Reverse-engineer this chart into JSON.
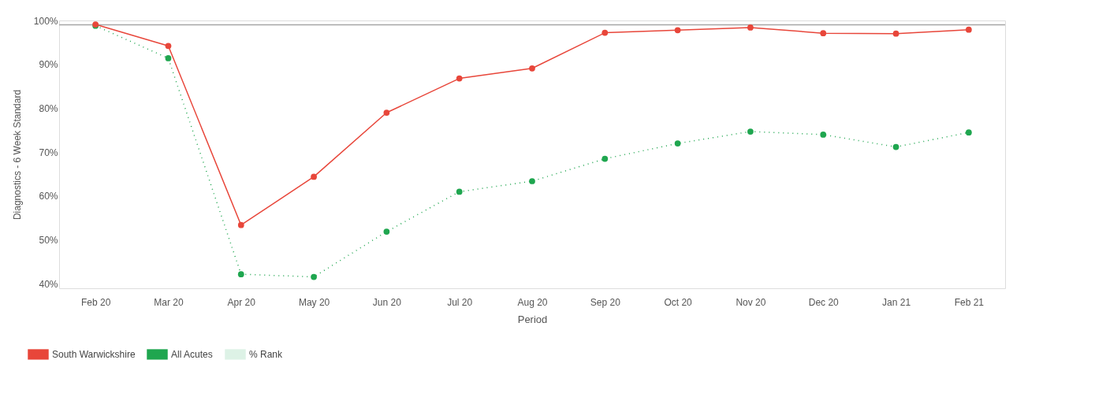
{
  "chart_data": {
    "type": "line",
    "xlabel": "Period",
    "ylabel": "Diagnostics - 6 Week Standard",
    "categories": [
      "Feb 20",
      "Mar 20",
      "Apr 20",
      "May 20",
      "Jun 20",
      "Jul 20",
      "Aug 20",
      "Sep 20",
      "Oct 20",
      "Nov 20",
      "Dec 20",
      "Jan 21",
      "Feb 21"
    ],
    "series": [
      {
        "name": "South Warwickshire",
        "color": "#e8463a",
        "line_style": "solid",
        "values": [
          99.1,
          94.2,
          53.4,
          64.4,
          79.0,
          86.8,
          89.1,
          97.2,
          97.8,
          98.4,
          97.1,
          97.0,
          97.9
        ]
      },
      {
        "name": "All Acutes",
        "color": "#1fa64f",
        "line_style": "dotted",
        "values": [
          98.8,
          91.4,
          42.2,
          41.6,
          51.9,
          61.0,
          63.4,
          68.5,
          72.0,
          74.7,
          74.0,
          71.2,
          74.5
        ]
      },
      {
        "name": "% Rank",
        "color": "#ddf2e6",
        "values": [
          null,
          null,
          null,
          null,
          null,
          null,
          null,
          null,
          null,
          null,
          null,
          null,
          null
        ]
      }
    ],
    "ylim": [
      39,
      100
    ],
    "yticks": [
      {
        "value": 40,
        "label": "40%"
      },
      {
        "value": 50,
        "label": "50%"
      },
      {
        "value": 60,
        "label": "60%"
      },
      {
        "value": 70,
        "label": "70%"
      },
      {
        "value": 80,
        "label": "80%"
      },
      {
        "value": 90,
        "label": "90%"
      },
      {
        "value": 100,
        "label": "100%"
      }
    ],
    "ref_lines": [
      {
        "axis": "y",
        "value": 99,
        "color": "#a6a6a6"
      }
    ],
    "marker": "circle",
    "grid": false,
    "legend": "bottom left"
  }
}
